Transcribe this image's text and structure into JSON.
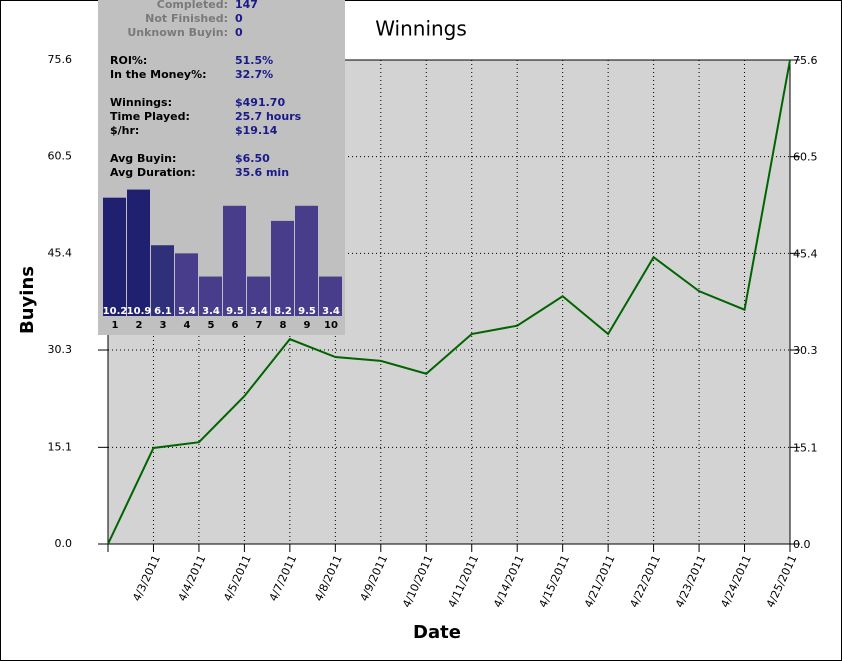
{
  "chart_data": [
    {
      "type": "line",
      "title": "Winnings",
      "xlabel": "Date",
      "ylabel": "Buyins",
      "categories": [
        null,
        "4/3/2011",
        "4/4/2011",
        "4/5/2011",
        "4/7/2011",
        "4/8/2011",
        "4/9/2011",
        "4/10/2011",
        "4/11/2011",
        "4/14/2011",
        "4/15/2011",
        "4/21/2011",
        "4/22/2011",
        "4/23/2011",
        "4/24/2011",
        "4/25/2011"
      ],
      "values": [
        0,
        15.0,
        15.9,
        23.1,
        32.0,
        29.2,
        28.6,
        26.6,
        32.8,
        34.1,
        38.7,
        32.8,
        44.8,
        39.5,
        36.6,
        75.6
      ],
      "color": "#006400",
      "ylim": [
        0,
        75.6
      ],
      "yticks": [
        {
          "value": 0,
          "label": "0.0"
        },
        15.1,
        30.3,
        45.4,
        60.5,
        75.6
      ],
      "grid": true
    },
    {
      "type": "bar",
      "categories": [
        "1",
        "2",
        "3",
        "4",
        "5",
        "6",
        "7",
        "8",
        "9",
        "10"
      ],
      "values": [
        10.2,
        10.9,
        6.1,
        5.4,
        3.4,
        9.5,
        3.4,
        8.2,
        9.5,
        3.4
      ],
      "colors": [
        "#202070",
        "#202070",
        "#30307a",
        "#483d8b",
        "#483d8b",
        "#483d8b",
        "#483d8b",
        "#483d8b",
        "#483d8b",
        "#483d8b"
      ]
    }
  ],
  "stats": {
    "rows": [
      {
        "label": "Completed:",
        "value": "147"
      },
      {
        "label": "Not Finished:",
        "value": "0"
      },
      {
        "label": "Unknown Buyin:",
        "value": "0"
      },
      {
        "label": "ROI%:",
        "value": "51.5%"
      },
      {
        "label": "In the Money%:",
        "value": "32.7%"
      },
      {
        "label": "Winnings:",
        "value": "$491.70"
      },
      {
        "label": "Time Played:",
        "value": "25.7 hours"
      },
      {
        "label": "$/hr:",
        "value": "$19.14"
      },
      {
        "label": "Avg Buyin:",
        "value": "$6.50"
      },
      {
        "label": "Avg Duration:",
        "value": "35.6 min"
      }
    ]
  }
}
